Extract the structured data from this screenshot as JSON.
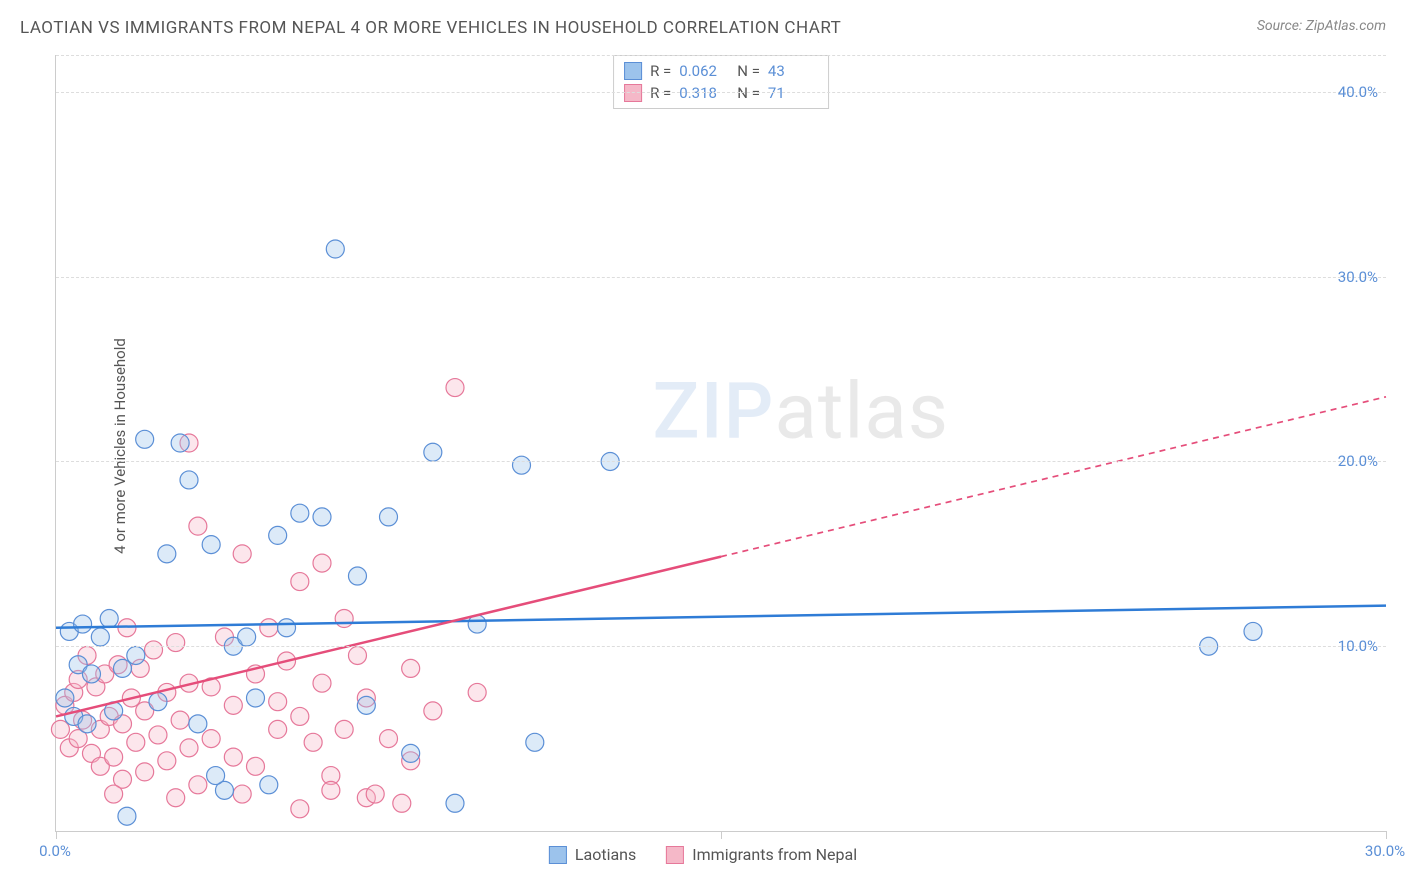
{
  "title": "LAOTIAN VS IMMIGRANTS FROM NEPAL 4 OR MORE VEHICLES IN HOUSEHOLD CORRELATION CHART",
  "source_label": "Source: ",
  "source_name": "ZipAtlas.com",
  "y_axis_label": "4 or more Vehicles in Household",
  "watermark_a": "ZIP",
  "watermark_b": "atlas",
  "chart": {
    "type": "scatter",
    "xlim": [
      0,
      30
    ],
    "ylim": [
      0,
      42
    ],
    "x_ticks": [
      0,
      15,
      30
    ],
    "x_tick_labels": [
      "0.0%",
      "",
      "30.0%"
    ],
    "y_ticks": [
      10,
      20,
      30,
      40
    ],
    "y_tick_labels": [
      "10.0%",
      "20.0%",
      "30.0%",
      "40.0%"
    ],
    "x_label_color": "#5b8fd6",
    "y_label_color": "#5b8fd6",
    "grid_color": "#dddddd",
    "background_color": "#ffffff",
    "marker_radius": 9,
    "marker_stroke_width": 1.2,
    "marker_fill_opacity": 0.35,
    "series": [
      {
        "name": "Laotians",
        "color_fill": "#9cc3ec",
        "color_stroke": "#5b8fd6",
        "R": "0.062",
        "N": "43",
        "trend": {
          "y_at_x0": 11.0,
          "y_at_xmax": 12.2,
          "solid_until_x": 30,
          "line_color": "#2f7cd6",
          "line_width": 2.5
        },
        "points": [
          [
            0.2,
            7.2
          ],
          [
            0.3,
            10.8
          ],
          [
            0.4,
            6.2
          ],
          [
            0.5,
            9.0
          ],
          [
            0.6,
            11.2
          ],
          [
            0.7,
            5.8
          ],
          [
            0.8,
            8.5
          ],
          [
            1.0,
            10.5
          ],
          [
            1.2,
            11.5
          ],
          [
            1.3,
            6.5
          ],
          [
            1.5,
            8.8
          ],
          [
            1.6,
            0.8
          ],
          [
            1.8,
            9.5
          ],
          [
            2.0,
            21.2
          ],
          [
            2.3,
            7.0
          ],
          [
            2.5,
            15.0
          ],
          [
            2.8,
            21.0
          ],
          [
            3.0,
            19.0
          ],
          [
            3.2,
            5.8
          ],
          [
            3.5,
            15.5
          ],
          [
            3.8,
            2.2
          ],
          [
            4.0,
            10.0
          ],
          [
            4.3,
            10.5
          ],
          [
            4.5,
            7.2
          ],
          [
            5.0,
            16.0
          ],
          [
            5.2,
            11.0
          ],
          [
            5.5,
            17.2
          ],
          [
            6.0,
            17.0
          ],
          [
            6.3,
            31.5
          ],
          [
            6.8,
            13.8
          ],
          [
            7.0,
            6.8
          ],
          [
            7.5,
            17.0
          ],
          [
            8.0,
            4.2
          ],
          [
            8.5,
            20.5
          ],
          [
            9.0,
            1.5
          ],
          [
            9.5,
            11.2
          ],
          [
            10.5,
            19.8
          ],
          [
            10.8,
            4.8
          ],
          [
            12.5,
            20.0
          ],
          [
            26.0,
            10.0
          ],
          [
            27.0,
            10.8
          ],
          [
            4.8,
            2.5
          ],
          [
            3.6,
            3.0
          ]
        ]
      },
      {
        "name": "Immigrants from Nepal",
        "color_fill": "#f5b8c8",
        "color_stroke": "#e6789a",
        "R": "0.318",
        "N": "71",
        "trend": {
          "y_at_x0": 6.2,
          "y_at_xmax": 23.5,
          "solid_until_x": 15,
          "line_color": "#e54d7a",
          "line_width": 2.5
        },
        "points": [
          [
            0.1,
            5.5
          ],
          [
            0.2,
            6.8
          ],
          [
            0.3,
            4.5
          ],
          [
            0.4,
            7.5
          ],
          [
            0.5,
            5.0
          ],
          [
            0.5,
            8.2
          ],
          [
            0.6,
            6.0
          ],
          [
            0.7,
            9.5
          ],
          [
            0.8,
            4.2
          ],
          [
            0.9,
            7.8
          ],
          [
            1.0,
            5.5
          ],
          [
            1.0,
            3.5
          ],
          [
            1.1,
            8.5
          ],
          [
            1.2,
            6.2
          ],
          [
            1.3,
            4.0
          ],
          [
            1.4,
            9.0
          ],
          [
            1.5,
            5.8
          ],
          [
            1.5,
            2.8
          ],
          [
            1.6,
            11.0
          ],
          [
            1.7,
            7.2
          ],
          [
            1.8,
            4.8
          ],
          [
            1.9,
            8.8
          ],
          [
            2.0,
            6.5
          ],
          [
            2.0,
            3.2
          ],
          [
            2.2,
            9.8
          ],
          [
            2.3,
            5.2
          ],
          [
            2.5,
            7.5
          ],
          [
            2.5,
            3.8
          ],
          [
            2.7,
            10.2
          ],
          [
            2.8,
            6.0
          ],
          [
            3.0,
            8.0
          ],
          [
            3.0,
            4.5
          ],
          [
            3.0,
            21.0
          ],
          [
            3.2,
            16.5
          ],
          [
            3.5,
            7.8
          ],
          [
            3.5,
            5.0
          ],
          [
            3.8,
            10.5
          ],
          [
            4.0,
            6.8
          ],
          [
            4.0,
            4.0
          ],
          [
            4.2,
            15.0
          ],
          [
            4.5,
            8.5
          ],
          [
            4.5,
            3.5
          ],
          [
            4.8,
            11.0
          ],
          [
            5.0,
            7.0
          ],
          [
            5.0,
            5.5
          ],
          [
            5.2,
            9.2
          ],
          [
            5.5,
            6.2
          ],
          [
            5.5,
            13.5
          ],
          [
            5.8,
            4.8
          ],
          [
            6.0,
            14.5
          ],
          [
            6.0,
            8.0
          ],
          [
            6.2,
            3.0
          ],
          [
            6.5,
            11.5
          ],
          [
            6.5,
            5.5
          ],
          [
            6.8,
            9.5
          ],
          [
            7.0,
            7.2
          ],
          [
            7.0,
            1.8
          ],
          [
            7.2,
            2.0
          ],
          [
            7.5,
            5.0
          ],
          [
            7.8,
            1.5
          ],
          [
            8.0,
            8.8
          ],
          [
            8.0,
            3.8
          ],
          [
            8.5,
            6.5
          ],
          [
            9.0,
            24.0
          ],
          [
            9.5,
            7.5
          ],
          [
            5.5,
            1.2
          ],
          [
            6.2,
            2.2
          ],
          [
            4.2,
            2.0
          ],
          [
            3.2,
            2.5
          ],
          [
            2.7,
            1.8
          ],
          [
            1.3,
            2.0
          ]
        ]
      }
    ]
  },
  "stats_legend": {
    "R_label": "R =",
    "N_label": "N ="
  },
  "bottom_legend_labels": [
    "Laotians",
    "Immigrants from Nepal"
  ]
}
